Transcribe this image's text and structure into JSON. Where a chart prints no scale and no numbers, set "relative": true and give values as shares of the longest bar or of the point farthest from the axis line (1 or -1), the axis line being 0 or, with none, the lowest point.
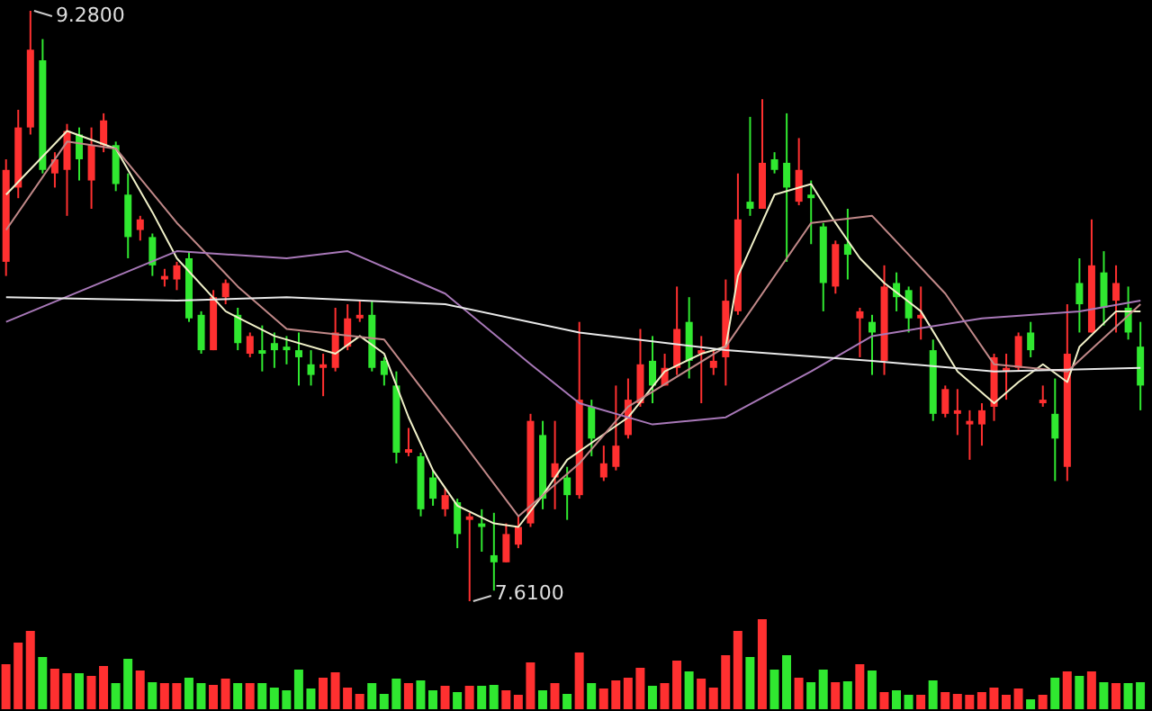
{
  "chart_data": [
    {
      "type": "candlestick",
      "categories": [
        null,
        null,
        null,
        null,
        null,
        null,
        null,
        null,
        null,
        null,
        null,
        null,
        null,
        null,
        null,
        null,
        null,
        null,
        null,
        null,
        null,
        null,
        null,
        null,
        null,
        null,
        null,
        null,
        null,
        null,
        null,
        null,
        null,
        null,
        null,
        null,
        null,
        null,
        null,
        null,
        null,
        null,
        null,
        null,
        null,
        null,
        null,
        null,
        null,
        null,
        null,
        null,
        null,
        null,
        null,
        null,
        null,
        null,
        null,
        null,
        null,
        null,
        null,
        null,
        null,
        null,
        null,
        null,
        null,
        null,
        null,
        null,
        null,
        null,
        null,
        null,
        null,
        null,
        null,
        null,
        null,
        null,
        null,
        null,
        null,
        null,
        null,
        null,
        null,
        null,
        null,
        null,
        null,
        null
      ],
      "ohlc": [
        [
          8.57,
          8.86,
          8.53,
          8.83
        ],
        [
          8.78,
          9.0,
          8.75,
          8.95
        ],
        [
          8.95,
          9.28,
          8.93,
          9.17
        ],
        [
          9.14,
          9.2,
          8.82,
          8.83
        ],
        [
          8.82,
          8.88,
          8.78,
          8.86
        ],
        [
          8.83,
          8.96,
          8.7,
          8.94
        ],
        [
          8.93,
          8.95,
          8.8,
          8.86
        ],
        [
          8.8,
          8.95,
          8.72,
          8.9
        ],
        [
          8.9,
          8.99,
          8.88,
          8.97
        ],
        [
          8.9,
          8.91,
          8.77,
          8.79
        ],
        [
          8.76,
          8.82,
          8.58,
          8.64
        ],
        [
          8.66,
          8.7,
          8.63,
          8.69
        ],
        [
          8.64,
          8.65,
          8.53,
          8.56
        ],
        [
          8.52,
          8.55,
          8.5,
          8.53
        ],
        [
          8.52,
          8.57,
          8.49,
          8.56
        ],
        [
          8.58,
          8.6,
          8.4,
          8.41
        ],
        [
          8.42,
          8.43,
          8.31,
          8.32
        ],
        [
          8.32,
          8.49,
          8.32,
          8.47
        ],
        [
          8.47,
          8.52,
          8.45,
          8.51
        ],
        [
          8.42,
          8.44,
          8.32,
          8.34
        ],
        [
          8.31,
          8.37,
          8.3,
          8.36
        ],
        [
          8.32,
          8.39,
          8.26,
          8.31
        ],
        [
          8.34,
          8.37,
          8.27,
          8.32
        ],
        [
          8.33,
          8.36,
          8.28,
          8.32
        ],
        [
          8.32,
          8.37,
          8.22,
          8.3
        ],
        [
          8.28,
          8.32,
          8.22,
          8.25
        ],
        [
          8.27,
          8.31,
          8.19,
          8.28
        ],
        [
          8.27,
          8.44,
          8.26,
          8.37
        ],
        [
          8.33,
          8.45,
          8.32,
          8.41
        ],
        [
          8.41,
          8.46,
          8.4,
          8.42
        ],
        [
          8.42,
          8.46,
          8.26,
          8.27
        ],
        [
          8.29,
          8.3,
          8.22,
          8.25
        ],
        [
          8.22,
          8.26,
          8.0,
          8.03
        ],
        [
          8.03,
          8.1,
          8.02,
          8.04
        ],
        [
          8.02,
          8.03,
          7.85,
          7.87
        ],
        [
          7.96,
          7.98,
          7.88,
          7.9
        ],
        [
          7.87,
          7.93,
          7.85,
          7.91
        ],
        [
          7.89,
          7.9,
          7.76,
          7.8
        ],
        [
          7.84,
          7.86,
          7.61,
          7.85
        ],
        [
          7.83,
          7.87,
          7.75,
          7.82
        ],
        [
          7.74,
          7.86,
          7.64,
          7.72
        ],
        [
          7.72,
          7.83,
          7.72,
          7.8
        ],
        [
          7.77,
          7.85,
          7.76,
          7.82
        ],
        [
          7.83,
          8.14,
          7.82,
          8.12
        ],
        [
          8.08,
          8.12,
          7.87,
          7.9
        ],
        [
          7.96,
          8.12,
          7.87,
          8.0
        ],
        [
          7.96,
          7.99,
          7.84,
          7.91
        ],
        [
          7.91,
          8.4,
          7.9,
          8.18
        ],
        [
          8.16,
          8.18,
          8.02,
          8.07
        ],
        [
          7.96,
          8.05,
          7.95,
          8.0
        ],
        [
          7.99,
          8.22,
          7.98,
          8.05
        ],
        [
          8.08,
          8.24,
          8.07,
          8.18
        ],
        [
          8.17,
          8.38,
          8.16,
          8.28
        ],
        [
          8.29,
          8.36,
          8.17,
          8.22
        ],
        [
          8.22,
          8.31,
          8.22,
          8.27
        ],
        [
          8.27,
          8.5,
          8.25,
          8.38
        ],
        [
          8.4,
          8.47,
          8.24,
          8.29
        ],
        [
          8.31,
          8.36,
          8.17,
          8.32
        ],
        [
          8.27,
          8.32,
          8.25,
          8.29
        ],
        [
          8.3,
          8.52,
          8.22,
          8.46
        ],
        [
          8.43,
          8.82,
          8.42,
          8.69
        ],
        [
          8.74,
          8.98,
          8.7,
          8.72
        ],
        [
          8.72,
          9.03,
          8.72,
          8.85
        ],
        [
          8.86,
          8.88,
          8.82,
          8.83
        ],
        [
          8.85,
          8.99,
          8.57,
          8.78
        ],
        [
          8.74,
          8.92,
          8.73,
          8.83
        ],
        [
          8.76,
          8.8,
          8.62,
          8.75
        ],
        [
          8.67,
          8.68,
          8.43,
          8.51
        ],
        [
          8.5,
          8.63,
          8.48,
          8.62
        ],
        [
          8.62,
          8.72,
          8.52,
          8.59
        ],
        [
          8.41,
          8.44,
          8.3,
          8.43
        ],
        [
          8.4,
          8.42,
          8.25,
          8.37
        ],
        [
          8.29,
          8.56,
          8.25,
          8.5
        ],
        [
          8.51,
          8.54,
          8.43,
          8.47
        ],
        [
          8.49,
          8.5,
          8.37,
          8.41
        ],
        [
          8.41,
          8.5,
          8.35,
          8.42
        ],
        [
          8.32,
          8.35,
          8.12,
          8.14
        ],
        [
          8.14,
          8.22,
          8.13,
          8.21
        ],
        [
          8.14,
          8.21,
          8.08,
          8.15
        ],
        [
          8.11,
          8.15,
          8.01,
          8.12
        ],
        [
          8.11,
          8.17,
          8.05,
          8.15
        ],
        [
          8.16,
          8.31,
          8.12,
          8.3
        ],
        [
          8.26,
          8.31,
          8.18,
          8.27
        ],
        [
          8.27,
          8.37,
          8.26,
          8.36
        ],
        [
          8.37,
          8.4,
          8.3,
          8.32
        ],
        [
          8.17,
          8.22,
          8.16,
          8.18
        ],
        [
          8.14,
          8.24,
          7.95,
          8.07
        ],
        [
          7.99,
          8.45,
          7.95,
          8.31
        ],
        [
          8.51,
          8.58,
          8.37,
          8.45
        ],
        [
          8.37,
          8.69,
          8.37,
          8.56
        ],
        [
          8.54,
          8.6,
          8.39,
          8.44
        ],
        [
          8.46,
          8.56,
          8.37,
          8.51
        ],
        [
          8.44,
          8.5,
          8.35,
          8.37
        ],
        [
          8.33,
          8.4,
          8.15,
          8.22
        ]
      ],
      "colors": [
        "#ff3030",
        "#ff3030",
        "#ff3030",
        "#30e830",
        "#ff3030",
        "#ff3030",
        "#30e830",
        "#ff3030",
        "#ff3030",
        "#30e830",
        "#30e830",
        "#ff3030",
        "#30e830",
        "#ff3030",
        "#ff3030",
        "#30e830",
        "#30e830",
        "#ff3030",
        "#ff3030",
        "#30e830",
        "#ff3030",
        "#30e830",
        "#30e830",
        "#30e830",
        "#30e830",
        "#30e830",
        "#ff3030",
        "#ff3030",
        "#ff3030",
        "#ff3030",
        "#30e830",
        "#30e830",
        "#30e830",
        "#ff3030",
        "#30e830",
        "#30e830",
        "#ff3030",
        "#30e830",
        "#ff3030",
        "#30e830",
        "#30e830",
        "#ff3030",
        "#ff3030",
        "#ff3030",
        "#30e830",
        "#ff3030",
        "#30e830",
        "#ff3030",
        "#30e830",
        "#ff3030",
        "#ff3030",
        "#ff3030",
        "#ff3030",
        "#30e830",
        "#ff3030",
        "#ff3030",
        "#30e830",
        "#ff3030",
        "#ff3030",
        "#ff3030",
        "#ff3030",
        "#30e830",
        "#ff3030",
        "#30e830",
        "#30e830",
        "#ff3030",
        "#30e830",
        "#30e830",
        "#ff3030",
        "#30e830",
        "#ff3030",
        "#30e830",
        "#ff3030",
        "#30e830",
        "#30e830",
        "#ff3030",
        "#30e830",
        "#ff3030",
        "#ff3030",
        "#ff3030",
        "#ff3030",
        "#ff3030",
        "#ff3030",
        "#ff3030",
        "#30e830",
        "#ff3030",
        "#30e830",
        "#ff3030",
        "#30e830",
        "#ff3030",
        "#30e830",
        "#ff3030",
        "#30e830",
        "#30e830"
      ],
      "series": [
        {
          "type": "line",
          "color": "#f0f0c8",
          "values": [
            8.76,
            null,
            null,
            null,
            null,
            8.94,
            null,
            null,
            null,
            8.89,
            null,
            null,
            8.71,
            null,
            8.58,
            null,
            null,
            null,
            8.43,
            null,
            null,
            null,
            8.36,
            null,
            null,
            null,
            null,
            8.31,
            null,
            8.36,
            null,
            8.31,
            null,
            8.13,
            null,
            7.98,
            null,
            7.88,
            null,
            null,
            7.83,
            null,
            7.82,
            null,
            7.91,
            null,
            8.01,
            null,
            null,
            null,
            null,
            8.13,
            null,
            null,
            8.26,
            null,
            null,
            8.31,
            null,
            8.33,
            8.53,
            null,
            null,
            8.76,
            null,
            null,
            8.79,
            null,
            8.68,
            null,
            8.58,
            null,
            8.51,
            null,
            null,
            8.43,
            null,
            null,
            8.26,
            null,
            null,
            8.17,
            null,
            8.23,
            null,
            8.28,
            null,
            8.23,
            8.33,
            null,
            null,
            8.43,
            null,
            8.43
          ]
        },
        {
          "type": "line",
          "color": "#c08888",
          "values": [
            8.66,
            null,
            null,
            null,
            null,
            8.91,
            null,
            null,
            null,
            8.89,
            null,
            null,
            null,
            null,
            8.68,
            null,
            null,
            null,
            null,
            8.5,
            null,
            null,
            null,
            8.38,
            null,
            null,
            null,
            null,
            null,
            null,
            null,
            8.35,
            null,
            null,
            null,
            null,
            null,
            8.08,
            null,
            null,
            null,
            null,
            7.85,
            null,
            null,
            null,
            null,
            8.0,
            null,
            null,
            null,
            8.16,
            null,
            null,
            null,
            null,
            null,
            null,
            null,
            8.33,
            null,
            null,
            null,
            null,
            null,
            null,
            8.68,
            null,
            null,
            null,
            null,
            8.7,
            null,
            null,
            null,
            null,
            null,
            8.48,
            null,
            null,
            null,
            8.28,
            null,
            null,
            null,
            null,
            null,
            8.26,
            null,
            null,
            null,
            null,
            null,
            8.45
          ]
        },
        {
          "type": "line",
          "color": "#a878b8",
          "values": [
            8.4,
            null,
            null,
            null,
            null,
            null,
            null,
            8.5,
            null,
            null,
            null,
            null,
            null,
            null,
            8.6,
            null,
            null,
            null,
            null,
            null,
            null,
            null,
            null,
            8.58,
            null,
            null,
            null,
            null,
            8.6,
            null,
            null,
            null,
            null,
            null,
            null,
            null,
            8.48,
            null,
            null,
            null,
            null,
            null,
            null,
            8.28,
            null,
            null,
            null,
            8.17,
            null,
            null,
            null,
            null,
            null,
            8.11,
            null,
            null,
            null,
            null,
            null,
            8.13,
            null,
            null,
            null,
            null,
            null,
            null,
            8.26,
            null,
            null,
            null,
            null,
            8.36,
            null,
            null,
            null,
            null,
            null,
            null,
            null,
            null,
            8.41,
            null,
            null,
            null,
            null,
            null,
            null,
            null,
            8.43,
            null,
            null,
            null,
            null,
            8.46
          ]
        },
        {
          "type": "line",
          "color": "#e8e8e8",
          "values": [
            8.47,
            null,
            null,
            null,
            null,
            null,
            null,
            null,
            null,
            null,
            null,
            null,
            null,
            null,
            8.46,
            null,
            null,
            null,
            null,
            null,
            null,
            null,
            null,
            8.47,
            null,
            null,
            null,
            null,
            null,
            null,
            null,
            null,
            null,
            null,
            null,
            null,
            8.45,
            null,
            null,
            null,
            null,
            null,
            null,
            null,
            null,
            null,
            null,
            8.37,
            null,
            null,
            null,
            null,
            null,
            null,
            null,
            null,
            null,
            null,
            null,
            8.32,
            null,
            null,
            null,
            null,
            null,
            null,
            null,
            null,
            null,
            null,
            null,
            8.29,
            null,
            null,
            null,
            null,
            null,
            null,
            null,
            null,
            null,
            8.26,
            null,
            null,
            null,
            null,
            null,
            null,
            null,
            null,
            null,
            null,
            null,
            8.27
          ]
        }
      ],
      "annotations": [
        "9.2800",
        "7.6100"
      ]
    },
    {
      "type": "bar",
      "relative": true,
      "categories": [
        null,
        null,
        null,
        null,
        null,
        null,
        null,
        null,
        null,
        null,
        null,
        null,
        null,
        null,
        null,
        null,
        null,
        null,
        null,
        null,
        null,
        null,
        null,
        null,
        null,
        null,
        null,
        null,
        null,
        null,
        null,
        null,
        null,
        null,
        null,
        null,
        null,
        null,
        null,
        null,
        null,
        null,
        null,
        null,
        null,
        null,
        null,
        null,
        null,
        null,
        null,
        null,
        null,
        null,
        null,
        null,
        null,
        null,
        null,
        null,
        null,
        null,
        null,
        null,
        null,
        null,
        null,
        null,
        null,
        null,
        null,
        null,
        null,
        null,
        null,
        null,
        null,
        null,
        null,
        null,
        null,
        null,
        null,
        null,
        null,
        null,
        null,
        null,
        null,
        null,
        null,
        null,
        null,
        null
      ],
      "values": [
        0.5,
        0.74,
        0.87,
        0.58,
        0.45,
        0.4,
        0.4,
        0.37,
        0.48,
        0.29,
        0.56,
        0.43,
        0.3,
        0.29,
        0.29,
        0.35,
        0.29,
        0.27,
        0.34,
        0.29,
        0.29,
        0.29,
        0.24,
        0.21,
        0.44,
        0.23,
        0.35,
        0.41,
        0.24,
        0.17,
        0.29,
        0.17,
        0.34,
        0.29,
        0.32,
        0.21,
        0.26,
        0.19,
        0.26,
        0.26,
        0.27,
        0.21,
        0.16,
        0.52,
        0.21,
        0.29,
        0.17,
        0.63,
        0.29,
        0.23,
        0.32,
        0.35,
        0.46,
        0.26,
        0.29,
        0.54,
        0.42,
        0.34,
        0.24,
        0.6,
        0.87,
        0.58,
        1,
        0.44,
        0.6,
        0.35,
        0.3,
        0.44,
        0.3,
        0.31,
        0.5,
        0.43,
        0.19,
        0.21,
        0.16,
        0.16,
        0.32,
        0.19,
        0.17,
        0.16,
        0.19,
        0.24,
        0.16,
        0.23,
        0.11,
        0.16,
        0.35,
        0.42,
        0.37,
        0.42,
        0.3,
        0.29,
        0.29,
        0.3
      ],
      "colors": [
        "#ff3030",
        "#ff3030",
        "#ff3030",
        "#30e830",
        "#ff3030",
        "#ff3030",
        "#30e830",
        "#ff3030",
        "#ff3030",
        "#30e830",
        "#30e830",
        "#ff3030",
        "#30e830",
        "#ff3030",
        "#ff3030",
        "#30e830",
        "#30e830",
        "#ff3030",
        "#ff3030",
        "#30e830",
        "#ff3030",
        "#30e830",
        "#30e830",
        "#30e830",
        "#30e830",
        "#30e830",
        "#ff3030",
        "#ff3030",
        "#ff3030",
        "#ff3030",
        "#30e830",
        "#30e830",
        "#30e830",
        "#ff3030",
        "#30e830",
        "#30e830",
        "#ff3030",
        "#30e830",
        "#ff3030",
        "#30e830",
        "#30e830",
        "#ff3030",
        "#ff3030",
        "#ff3030",
        "#30e830",
        "#ff3030",
        "#30e830",
        "#ff3030",
        "#30e830",
        "#ff3030",
        "#ff3030",
        "#ff3030",
        "#ff3030",
        "#30e830",
        "#ff3030",
        "#ff3030",
        "#30e830",
        "#ff3030",
        "#ff3030",
        "#ff3030",
        "#ff3030",
        "#30e830",
        "#ff3030",
        "#30e830",
        "#30e830",
        "#ff3030",
        "#30e830",
        "#30e830",
        "#ff3030",
        "#30e830",
        "#ff3030",
        "#30e830",
        "#ff3030",
        "#30e830",
        "#30e830",
        "#ff3030",
        "#30e830",
        "#ff3030",
        "#ff3030",
        "#ff3030",
        "#ff3030",
        "#ff3030",
        "#ff3030",
        "#ff3030",
        "#30e830",
        "#ff3030",
        "#30e830",
        "#ff3030",
        "#30e830",
        "#ff3030",
        "#30e830",
        "#ff3030",
        "#30e830",
        "#30e830"
      ]
    }
  ]
}
